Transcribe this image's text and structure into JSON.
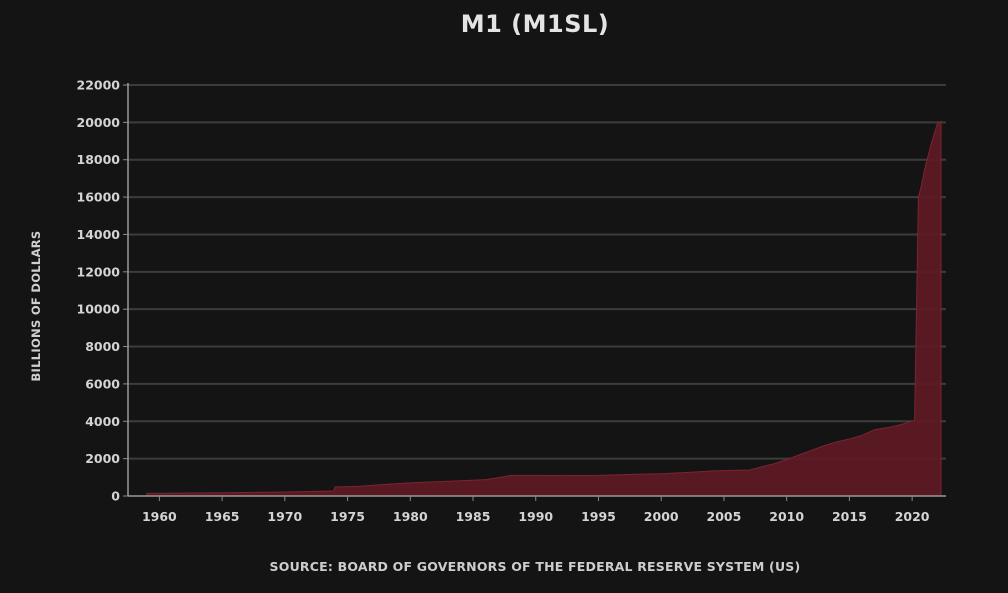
{
  "chart_data": {
    "type": "area",
    "title": "M1 (M1SL)",
    "xlabel": "",
    "ylabel": "BILLIONS OF DOLLARS",
    "source": "SOURCE: BOARD OF GOVERNORS OF THE FEDERAL RESERVE SYSTEM (US)",
    "xlim": [
      1957.5,
      2022.7
    ],
    "ylim": [
      0,
      22000
    ],
    "x_ticks": [
      1960,
      1965,
      1970,
      1975,
      1980,
      1985,
      1990,
      1995,
      2000,
      2005,
      2010,
      2015,
      2020
    ],
    "y_ticks": [
      0,
      2000,
      4000,
      6000,
      8000,
      10000,
      12000,
      14000,
      16000,
      18000,
      20000,
      22000
    ],
    "grid": true,
    "series": [
      {
        "name": "M1 (M1SL)",
        "color": "#5e1a25",
        "x": [
          1959,
          1965,
          1970,
          1973.9,
          1974.0,
          1976,
          1978,
          1980,
          1982,
          1984,
          1986,
          1987,
          1988,
          1990,
          1992,
          1995,
          1998,
          2000,
          2002,
          2004,
          2006,
          2007,
          2008,
          2009,
          2010,
          2011,
          2012,
          2013,
          2014,
          2015,
          2016,
          2017,
          2018,
          2019,
          2020.2,
          2020.5,
          2020.7,
          2021,
          2021.5,
          2022,
          2022.3
        ],
        "values": [
          140,
          170,
          215,
          270,
          480,
          520,
          620,
          700,
          760,
          820,
          880,
          980,
          1100,
          1100,
          1090,
          1100,
          1160,
          1190,
          1260,
          1340,
          1380,
          1380,
          1560,
          1730,
          1950,
          2200,
          2450,
          2700,
          2900,
          3050,
          3250,
          3550,
          3650,
          3800,
          4050,
          16000,
          16500,
          17500,
          18800,
          19900,
          20050
        ]
      }
    ]
  }
}
